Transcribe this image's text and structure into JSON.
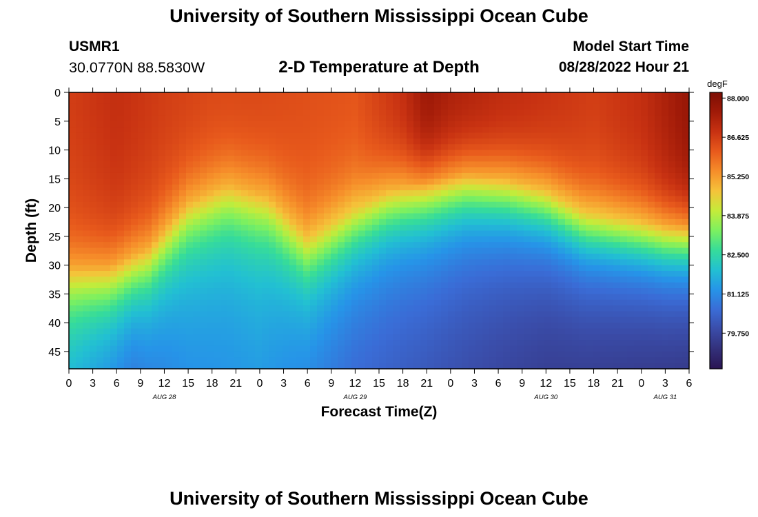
{
  "header": {
    "title": "University of Southern Mississippi Ocean Cube",
    "station": "USMR1",
    "coords": "30.0770N  88.5830W",
    "subtitle": "2-D Temperature at Depth",
    "start_label": "Model Start Time",
    "start_value": "08/28/2022 Hour 21"
  },
  "footer": {
    "title": "University of Southern Mississippi Ocean Cube"
  },
  "colors": {
    "palette": [
      "#2a1553",
      "#33307a",
      "#3a4ca8",
      "#3a6cd6",
      "#2694e8",
      "#22c0d2",
      "#36dc9a",
      "#7cf060",
      "#c4ec3a",
      "#f5c33a",
      "#f68e2a",
      "#e85a1c",
      "#c83212",
      "#a01a08",
      "#7d0e04"
    ]
  },
  "chart_data": {
    "type": "heatmap",
    "title": "2-D Temperature at Depth",
    "xlabel": "Forecast Time(Z)",
    "ylabel": "Depth (ft)",
    "x_hours_range": [
      0,
      78
    ],
    "x_tick_hours": [
      0,
      3,
      6,
      9,
      12,
      15,
      18,
      21,
      24,
      27,
      30,
      33,
      36,
      39,
      42,
      45,
      48,
      51,
      54,
      57,
      60,
      63,
      66,
      69,
      72,
      75,
      78
    ],
    "x_tick_labels": [
      "0",
      "3",
      "6",
      "9",
      "12",
      "15",
      "18",
      "21",
      "0",
      "3",
      "6",
      "9",
      "12",
      "15",
      "18",
      "21",
      "0",
      "3",
      "6",
      "9",
      "12",
      "15",
      "18",
      "21",
      "0",
      "3",
      "6"
    ],
    "date_labels": [
      {
        "label": "AUG 28",
        "hour": 12
      },
      {
        "label": "AUG 29",
        "hour": 36
      },
      {
        "label": "AUG 30",
        "hour": 60
      },
      {
        "label": "AUG 31",
        "hour": 75
      }
    ],
    "y_range": [
      0,
      48
    ],
    "y_ticks": [
      0,
      5,
      10,
      15,
      20,
      25,
      30,
      35,
      40,
      45
    ],
    "colorbar": {
      "units": "degF",
      "range": [
        78.5,
        88.2
      ],
      "ticks": [
        88.0,
        86.625,
        85.25,
        83.875,
        82.5,
        81.125,
        79.75
      ],
      "tick_labels": [
        "88.000",
        "86.625",
        "85.250",
        "83.875",
        "82.500",
        "81.125",
        "79.750"
      ]
    },
    "surface_temp_degF": [
      {
        "hour": 0,
        "t": 86.6
      },
      {
        "hour": 6,
        "t": 86.9
      },
      {
        "hour": 12,
        "t": 86.6
      },
      {
        "hour": 18,
        "t": 86.4
      },
      {
        "hour": 24,
        "t": 86.4
      },
      {
        "hour": 30,
        "t": 86.3
      },
      {
        "hour": 36,
        "t": 86.2
      },
      {
        "hour": 42,
        "t": 86.9
      },
      {
        "hour": 45,
        "t": 87.6
      },
      {
        "hour": 48,
        "t": 87.3
      },
      {
        "hour": 54,
        "t": 87.0
      },
      {
        "hour": 60,
        "t": 86.8
      },
      {
        "hour": 66,
        "t": 86.6
      },
      {
        "hour": 72,
        "t": 86.9
      },
      {
        "hour": 78,
        "t": 87.7
      }
    ],
    "thermocline_depth_ft": [
      {
        "hour": 0,
        "d": 30
      },
      {
        "hour": 5,
        "d": 30
      },
      {
        "hour": 10,
        "d": 27
      },
      {
        "hour": 15,
        "d": 19
      },
      {
        "hour": 20,
        "d": 16
      },
      {
        "hour": 25,
        "d": 18
      },
      {
        "hour": 30,
        "d": 25
      },
      {
        "hour": 35,
        "d": 21
      },
      {
        "hour": 40,
        "d": 17
      },
      {
        "hour": 45,
        "d": 15
      },
      {
        "hour": 50,
        "d": 14
      },
      {
        "hour": 55,
        "d": 15
      },
      {
        "hour": 60,
        "d": 17
      },
      {
        "hour": 65,
        "d": 21
      },
      {
        "hour": 70,
        "d": 22
      },
      {
        "hour": 75,
        "d": 23
      },
      {
        "hour": 78,
        "d": 23
      }
    ],
    "bottom_temp_degF": [
      {
        "hour": 0,
        "t": 81.3
      },
      {
        "hour": 8,
        "t": 80.3
      },
      {
        "hour": 15,
        "t": 81.0
      },
      {
        "hour": 24,
        "t": 81.2
      },
      {
        "hour": 36,
        "t": 80.3
      },
      {
        "hour": 48,
        "t": 79.8
      },
      {
        "hour": 60,
        "t": 79.3
      },
      {
        "hour": 70,
        "t": 79.1
      },
      {
        "hour": 78,
        "t": 78.9
      }
    ]
  }
}
